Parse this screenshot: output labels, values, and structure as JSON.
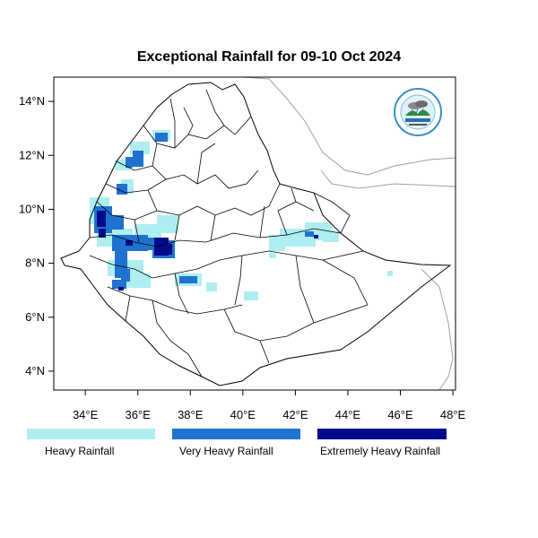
{
  "title": "Exceptional Rainfall for 09-10 Oct 2024",
  "axes": {
    "x_ticks": [
      {
        "value": 34,
        "label": "34°E"
      },
      {
        "value": 36,
        "label": "36°E"
      },
      {
        "value": 38,
        "label": "38°E"
      },
      {
        "value": 40,
        "label": "40°E"
      },
      {
        "value": 42,
        "label": "42°E"
      },
      {
        "value": 44,
        "label": "44°E"
      },
      {
        "value": 46,
        "label": "46°E"
      },
      {
        "value": 48,
        "label": "48°E"
      }
    ],
    "y_ticks": [
      {
        "value": 4,
        "label": "4°N"
      },
      {
        "value": 6,
        "label": "6°N"
      },
      {
        "value": 8,
        "label": "8°N"
      },
      {
        "value": 10,
        "label": "10°N"
      },
      {
        "value": 12,
        "label": "12°N"
      },
      {
        "value": 14,
        "label": "14°N"
      }
    ],
    "lon_range": [
      32.8,
      48.1
    ],
    "lat_range": [
      3.3,
      14.9
    ]
  },
  "legend": [
    {
      "label": "Heavy Rainfall",
      "color": "#aeeef0"
    },
    {
      "label": "Very Heavy Rainfall",
      "color": "#1f72cf"
    },
    {
      "label": "Extremely Heavy Rainfall",
      "color": "#000a8c"
    }
  ],
  "logo": {
    "icon": "agency-logo-icon"
  }
}
